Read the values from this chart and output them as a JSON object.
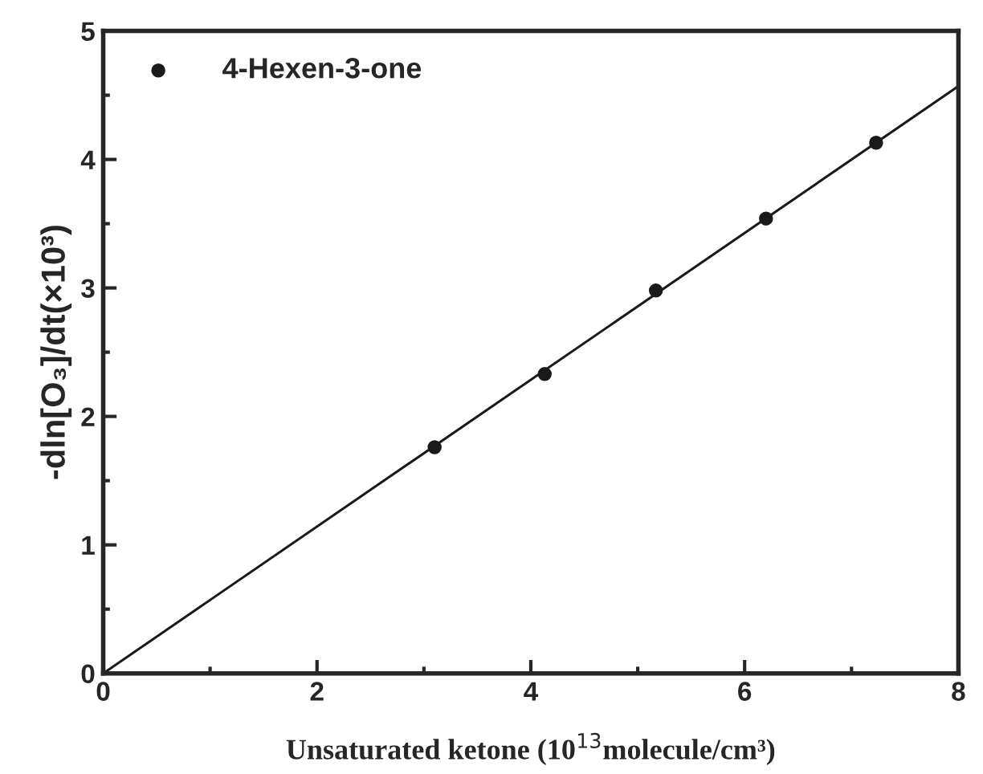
{
  "chart_data": {
    "type": "scatter",
    "xlabel": "Unsaturated ketone (10$^{13}$molecule/cm³)",
    "ylabel": "-dln[O₃]/dt(×10³)",
    "series": [
      {
        "name": "4-Hexen-3-one",
        "color": "#1a1a1a",
        "marker": "circle",
        "x": [
          3.1,
          4.13,
          5.17,
          6.2,
          7.23
        ],
        "values": [
          1.76,
          2.33,
          2.98,
          3.54,
          4.13
        ]
      },
      {
        "type": "line",
        "color": "#1a1a1a",
        "line_style": "solid",
        "x": [
          0,
          8
        ],
        "values": [
          0,
          4.57
        ]
      }
    ],
    "xlim": [
      0,
      8
    ],
    "ylim": [
      0,
      5
    ],
    "xticks": [
      0,
      2,
      4,
      6,
      8
    ],
    "yticks": [
      0,
      1,
      2,
      3,
      4,
      5
    ],
    "grid": false,
    "legend": "top left"
  }
}
